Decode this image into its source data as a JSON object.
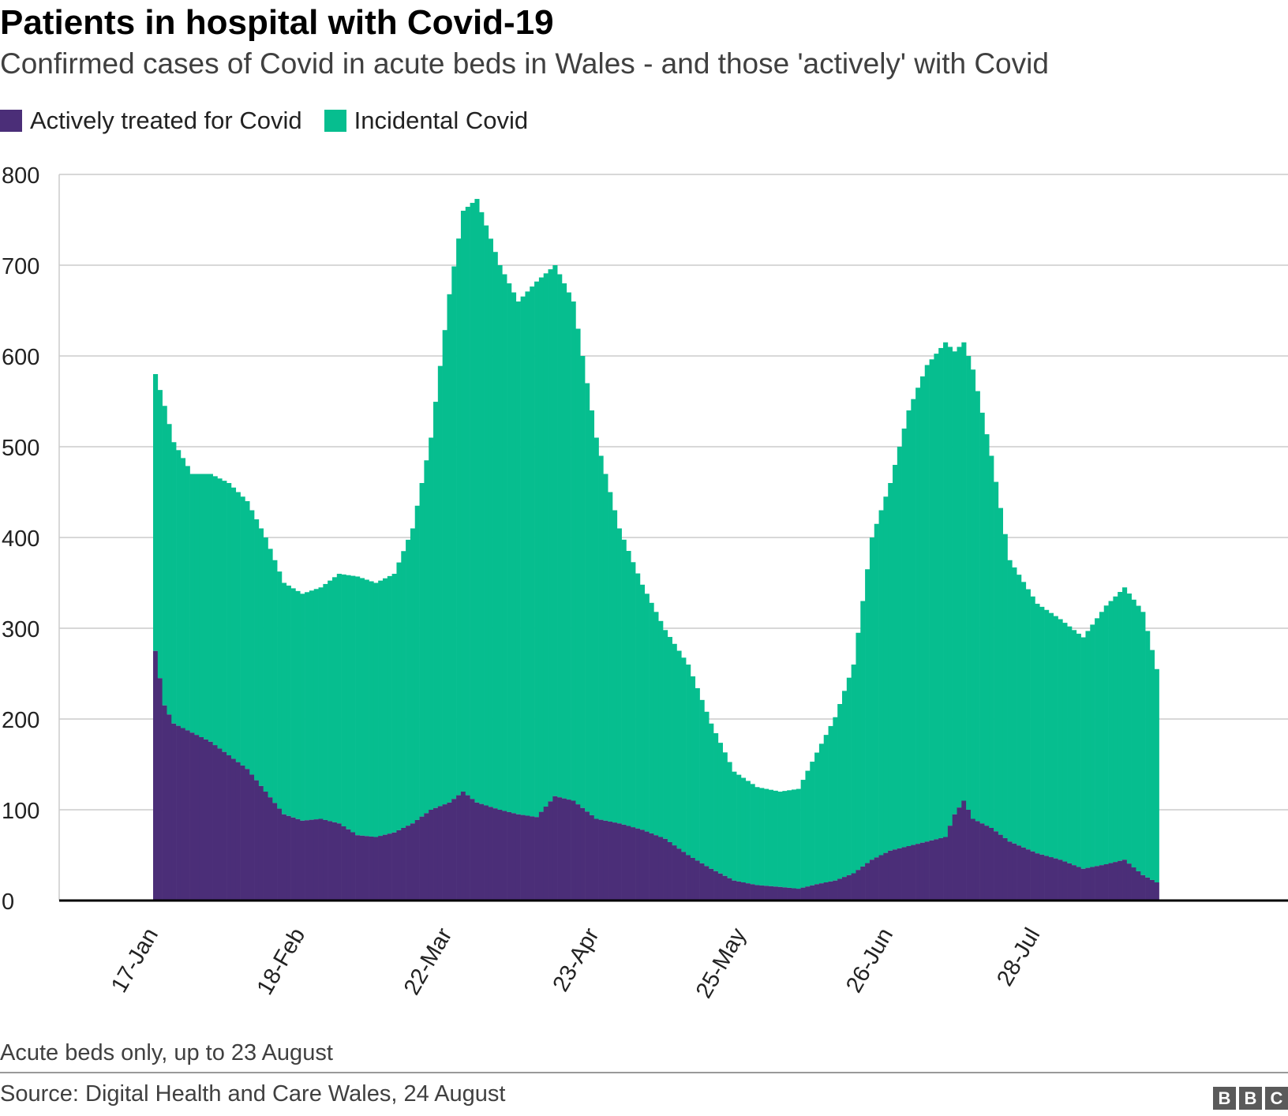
{
  "header": {
    "title": "Patients in hospital with Covid-19",
    "subtitle": "Confirmed cases of Covid in acute beds in Wales - and those 'actively' with Covid"
  },
  "footer": {
    "note": "Acute beds only, up to 23 August",
    "source": "Source: Digital Health and Care Wales, 24 August",
    "logo": "BBC"
  },
  "chart_data": {
    "type": "bar",
    "stacked": true,
    "title": "Patients in hospital with Covid-19",
    "subtitle": "Confirmed cases of Covid in acute beds in Wales - and those 'actively' with Covid",
    "xlabel": "",
    "ylabel": "",
    "ylim": [
      0,
      800
    ],
    "yticks": [
      0,
      100,
      200,
      300,
      400,
      500,
      600,
      700,
      800
    ],
    "x_tick_labels": [
      "17-Jan",
      "18-Feb",
      "22-Mar",
      "23-Apr",
      "25-May",
      "26-Jun",
      "28-Jul"
    ],
    "x_range": [
      "17-Jan",
      "23-Aug"
    ],
    "grid": true,
    "legend_position": "top-left",
    "colors": {
      "actively": "#4b2e78",
      "incidental": "#06be8f"
    },
    "series": [
      {
        "name": "Actively treated for Covid",
        "color": "#4b2e78",
        "anchors": [
          [
            "17-Jan",
            275
          ],
          [
            "19-Jan",
            215
          ],
          [
            "21-Jan",
            195
          ],
          [
            "25-Jan",
            185
          ],
          [
            "29-Jan",
            175
          ],
          [
            "2-Feb",
            160
          ],
          [
            "6-Feb",
            145
          ],
          [
            "10-Feb",
            120
          ],
          [
            "14-Feb",
            95
          ],
          [
            "18-Feb",
            88
          ],
          [
            "22-Feb",
            90
          ],
          [
            "26-Feb",
            85
          ],
          [
            "2-Mar",
            72
          ],
          [
            "6-Mar",
            70
          ],
          [
            "10-Mar",
            75
          ],
          [
            "14-Mar",
            85
          ],
          [
            "18-Mar",
            100
          ],
          [
            "22-Mar",
            108
          ],
          [
            "25-Mar",
            120
          ],
          [
            "28-Mar",
            108
          ],
          [
            "2-Apr",
            100
          ],
          [
            "6-Apr",
            95
          ],
          [
            "10-Apr",
            92
          ],
          [
            "14-Apr",
            115
          ],
          [
            "18-Apr",
            110
          ],
          [
            "23-Apr",
            90
          ],
          [
            "28-Apr",
            85
          ],
          [
            "3-May",
            78
          ],
          [
            "8-May",
            68
          ],
          [
            "13-May",
            50
          ],
          [
            "18-May",
            35
          ],
          [
            "23-May",
            22
          ],
          [
            "28-May",
            17
          ],
          [
            "2-Jun",
            15
          ],
          [
            "6-Jun",
            13
          ],
          [
            "10-Jun",
            18
          ],
          [
            "14-Jun",
            22
          ],
          [
            "18-Jun",
            30
          ],
          [
            "22-Jun",
            45
          ],
          [
            "26-Jun",
            55
          ],
          [
            "30-Jun",
            60
          ],
          [
            "4-Jul",
            65
          ],
          [
            "8-Jul",
            70
          ],
          [
            "10-Jul",
            95
          ],
          [
            "12-Jul",
            110
          ],
          [
            "14-Jul",
            90
          ],
          [
            "18-Jul",
            80
          ],
          [
            "22-Jul",
            65
          ],
          [
            "28-Jul",
            52
          ],
          [
            "2-Aug",
            45
          ],
          [
            "7-Aug",
            35
          ],
          [
            "12-Aug",
            40
          ],
          [
            "16-Aug",
            45
          ],
          [
            "20-Aug",
            28
          ],
          [
            "23-Aug",
            20
          ]
        ]
      },
      {
        "name": "Incidental Covid",
        "color": "#06be8f",
        "anchors": [
          [
            "17-Jan",
            305
          ],
          [
            "19-Jan",
            330
          ],
          [
            "21-Jan",
            310
          ],
          [
            "25-Jan",
            285
          ],
          [
            "29-Jan",
            295
          ],
          [
            "2-Feb",
            300
          ],
          [
            "6-Feb",
            295
          ],
          [
            "10-Feb",
            280
          ],
          [
            "14-Feb",
            255
          ],
          [
            "18-Feb",
            250
          ],
          [
            "22-Feb",
            255
          ],
          [
            "26-Feb",
            275
          ],
          [
            "2-Mar",
            285
          ],
          [
            "6-Mar",
            280
          ],
          [
            "10-Mar",
            285
          ],
          [
            "14-Mar",
            325
          ],
          [
            "18-Mar",
            410
          ],
          [
            "22-Mar",
            560
          ],
          [
            "25-Mar",
            640
          ],
          [
            "28-Mar",
            665
          ],
          [
            "2-Apr",
            600
          ],
          [
            "6-Apr",
            565
          ],
          [
            "10-Apr",
            590
          ],
          [
            "14-Apr",
            585
          ],
          [
            "18-Apr",
            550
          ],
          [
            "23-Apr",
            420
          ],
          [
            "28-Apr",
            325
          ],
          [
            "3-May",
            270
          ],
          [
            "8-May",
            230
          ],
          [
            "13-May",
            210
          ],
          [
            "18-May",
            160
          ],
          [
            "23-May",
            120
          ],
          [
            "28-May",
            108
          ],
          [
            "2-Jun",
            105
          ],
          [
            "6-Jun",
            110
          ],
          [
            "10-Jun",
            145
          ],
          [
            "14-Jun",
            180
          ],
          [
            "18-Jun",
            230
          ],
          [
            "22-Jun",
            355
          ],
          [
            "26-Jun",
            405
          ],
          [
            "30-Jun",
            480
          ],
          [
            "4-Jul",
            525
          ],
          [
            "8-Jul",
            545
          ],
          [
            "10-Jul",
            510
          ],
          [
            "12-Jul",
            505
          ],
          [
            "14-Jul",
            495
          ],
          [
            "18-Jul",
            410
          ],
          [
            "22-Jul",
            310
          ],
          [
            "28-Jul",
            275
          ],
          [
            "2-Aug",
            265
          ],
          [
            "7-Aug",
            255
          ],
          [
            "12-Aug",
            285
          ],
          [
            "16-Aug",
            300
          ],
          [
            "20-Aug",
            290
          ],
          [
            "23-Aug",
            235
          ]
        ]
      }
    ],
    "totals_anchors": [
      [
        "17-Jan",
        580
      ],
      [
        "19-Jan",
        545
      ],
      [
        "21-Jan",
        505
      ],
      [
        "25-Jan",
        470
      ],
      [
        "29-Jan",
        470
      ],
      [
        "2-Feb",
        460
      ],
      [
        "6-Feb",
        440
      ],
      [
        "10-Feb",
        400
      ],
      [
        "14-Feb",
        350
      ],
      [
        "18-Feb",
        338
      ],
      [
        "22-Feb",
        345
      ],
      [
        "26-Feb",
        360
      ],
      [
        "2-Mar",
        357
      ],
      [
        "6-Mar",
        350
      ],
      [
        "10-Mar",
        360
      ],
      [
        "14-Mar",
        410
      ],
      [
        "18-Mar",
        510
      ],
      [
        "22-Mar",
        668
      ],
      [
        "25-Mar",
        760
      ],
      [
        "28-Mar",
        773
      ],
      [
        "2-Apr",
        700
      ],
      [
        "6-Apr",
        660
      ],
      [
        "10-Apr",
        682
      ],
      [
        "14-Apr",
        700
      ],
      [
        "18-Apr",
        660
      ],
      [
        "23-Apr",
        510
      ],
      [
        "28-Apr",
        410
      ],
      [
        "3-May",
        348
      ],
      [
        "8-May",
        298
      ],
      [
        "13-May",
        260
      ],
      [
        "18-May",
        195
      ],
      [
        "23-May",
        142
      ],
      [
        "28-May",
        125
      ],
      [
        "2-Jun",
        120
      ],
      [
        "6-Jun",
        123
      ],
      [
        "10-Jun",
        163
      ],
      [
        "14-Jun",
        202
      ],
      [
        "18-Jun",
        260
      ],
      [
        "22-Jun",
        400
      ],
      [
        "26-Jun",
        460
      ],
      [
        "30-Jun",
        540
      ],
      [
        "4-Jul",
        590
      ],
      [
        "8-Jul",
        615
      ],
      [
        "10-Jul",
        605
      ],
      [
        "12-Jul",
        615
      ],
      [
        "14-Jul",
        585
      ],
      [
        "18-Jul",
        490
      ],
      [
        "22-Jul",
        375
      ],
      [
        "28-Jul",
        327
      ],
      [
        "2-Aug",
        310
      ],
      [
        "7-Aug",
        290
      ],
      [
        "12-Aug",
        325
      ],
      [
        "16-Aug",
        345
      ],
      [
        "20-Aug",
        318
      ],
      [
        "23-Aug",
        255
      ]
    ],
    "notes": "Daily values between listed dates follow the visible bar profile; anchors read from the chart's y-axis (people in acute beds)."
  }
}
